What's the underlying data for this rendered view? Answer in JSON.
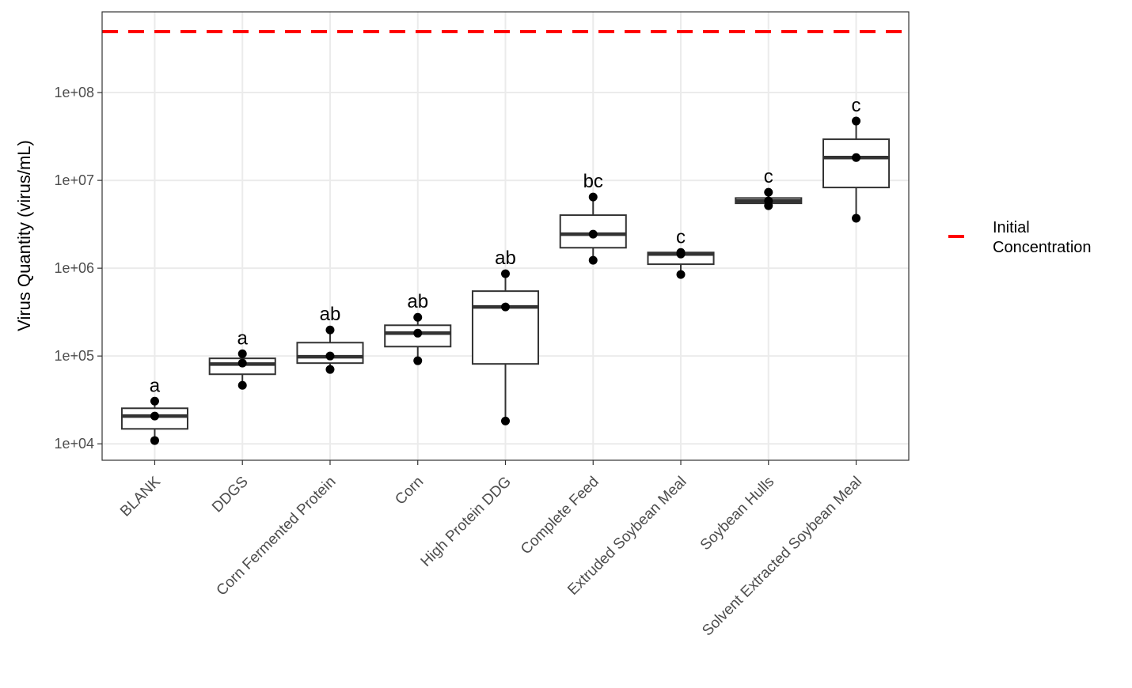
{
  "chart_data": {
    "type": "box",
    "y_axis_label": "Virus Quantity (virus/mL)",
    "log_scale": true,
    "grid": true,
    "ylim": [
      6500,
      830000000
    ],
    "yticks": [
      {
        "value": 10000,
        "label": "1e+04"
      },
      {
        "value": 100000,
        "label": "1e+05"
      },
      {
        "value": 1000000,
        "label": "1e+06"
      },
      {
        "value": 10000000,
        "label": "1e+07"
      },
      {
        "value": 100000000,
        "label": "1e+08"
      }
    ],
    "categories": [
      "BLANK",
      "DDGS",
      "Corn Fermented Protein",
      "Corn",
      "High Protein DDG",
      "Complete Feed",
      "Extruded Soybean Meal",
      "Soybean Hulls",
      "Solvent Extracted Soybean Meal"
    ],
    "box_color": "#333333",
    "point_color": "#000000",
    "q1": [
      14800,
      62000,
      83000,
      128000,
      81300,
      1710000,
      1110000,
      5480000,
      8300000
    ],
    "median": [
      20700,
      81000,
      98000,
      182000,
      362000,
      2440000,
      1450000,
      5830000,
      18200000
    ],
    "q3": [
      25400,
      94000,
      142000,
      224000,
      548000,
      4020000,
      1510000,
      6300000,
      29400000
    ],
    "points": [
      [
        30600,
        20700,
        10900
      ],
      [
        106000,
        83000,
        46400
      ],
      [
        198000,
        100000,
        70300
      ],
      [
        276000,
        182000,
        88300
      ],
      [
        865000,
        362000,
        18200
      ],
      [
        6470000,
        2440000,
        1230000
      ],
      [
        1510000,
        1450000,
        847000
      ],
      [
        7330000,
        5830000,
        5150000
      ],
      [
        47400000,
        18200000,
        3700000
      ]
    ],
    "letters": [
      "a",
      "a",
      "ab",
      "ab",
      "ab",
      "bc",
      "c",
      "c",
      "c"
    ],
    "reference_line": {
      "name": "Initial Concentration",
      "value": 494000000,
      "color": "#ff0000"
    },
    "legend_position": "right"
  }
}
